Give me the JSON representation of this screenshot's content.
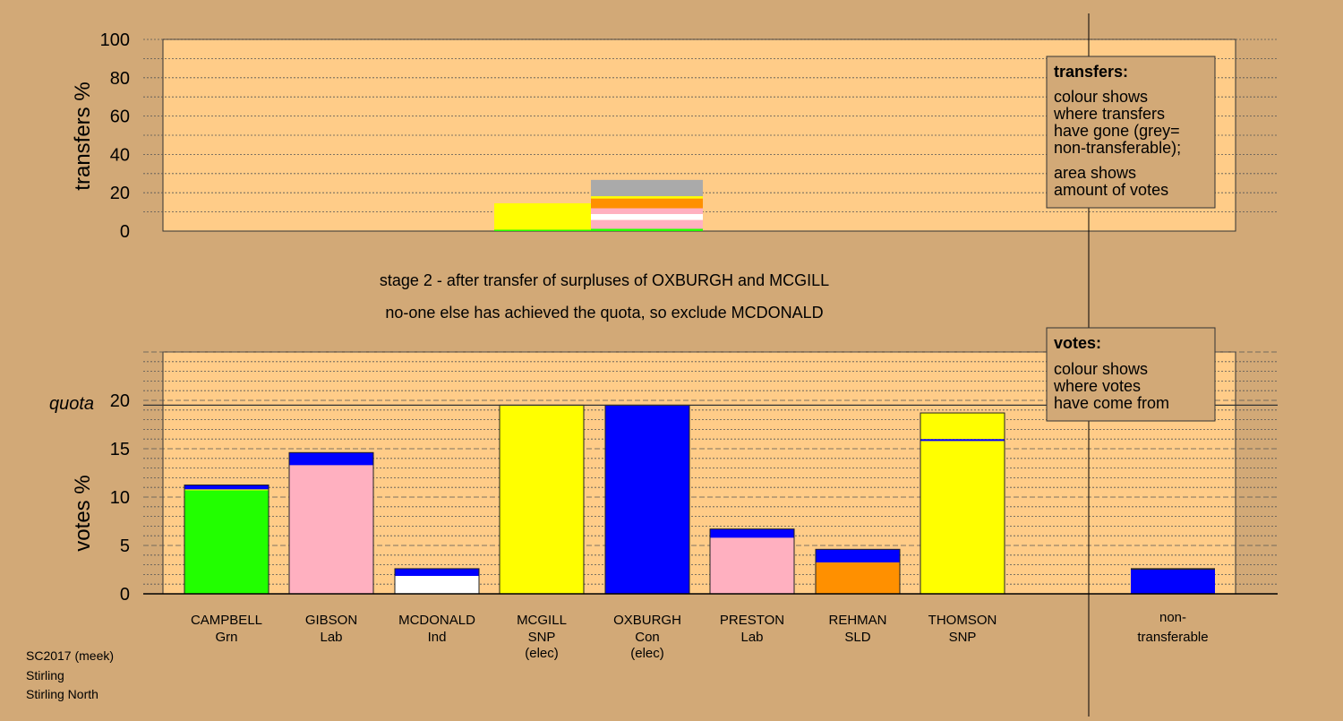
{
  "stage_line1": "stage 2 - after transfer of surpluses of OXBURGH and MCGILL",
  "stage_line2": "no-one else has achieved the quota, so exclude MCDONALD",
  "quota_label": "quota",
  "footer": {
    "line1": "SC2017 (meek)",
    "line2": "Stirling",
    "line3": "Stirling North"
  },
  "transfers_legend": {
    "title": "transfers:",
    "lines": [
      "colour shows",
      "where transfers",
      "have gone (grey=",
      "non-transferable);",
      "area shows",
      "amount of votes"
    ]
  },
  "votes_legend": {
    "title": "votes:",
    "lines": [
      "colour shows",
      "where votes",
      "have come from"
    ]
  },
  "colors": {
    "background": "#d2a977",
    "plot_area": "#ffcc88",
    "Grn": "#22ff00",
    "Lab": "#ffb0c0",
    "Ind": "#ffffff",
    "SNP": "#ffff00",
    "Con": "#0000ff",
    "SLD": "#ff9000",
    "nontransferable": "#aaaaaa"
  },
  "chart_data": [
    {
      "type": "bar",
      "title": "",
      "ylabel": "transfers %",
      "ylim": [
        0,
        100
      ],
      "yticks": [
        0,
        20,
        40,
        60,
        80,
        100
      ],
      "bars": [
        {
          "source": "MCGILL",
          "segments": [
            {
              "to": "CAMPBELL",
              "party": "Grn",
              "value": 0.7
            },
            {
              "to": "THOMSON",
              "party": "SNP",
              "value": 13.8
            }
          ]
        },
        {
          "source": "OXBURGH",
          "segments": [
            {
              "to": "CAMPBELL",
              "party": "Grn",
              "value": 1.2
            },
            {
              "to": "GIBSON",
              "party": "Lab",
              "value": 4.6
            },
            {
              "to": "MCDONALD",
              "party": "Ind",
              "value": 3.1
            },
            {
              "to": "PRESTON",
              "party": "Lab",
              "value": 3.0
            },
            {
              "to": "REHMAN",
              "party": "SLD",
              "value": 5.1
            },
            {
              "to": "THOMSON",
              "party": "SNP",
              "value": 1.2
            },
            {
              "to": "non-transferable",
              "party": "nontransferable",
              "value": 8.5
            }
          ]
        }
      ]
    },
    {
      "type": "bar",
      "title": "",
      "ylabel": "votes %",
      "ylim": [
        0,
        25
      ],
      "yticks": [
        0,
        5,
        10,
        15,
        20
      ],
      "quota": 19.5,
      "candidates": [
        {
          "name": "CAMPBELL",
          "party": "Grn",
          "note": "",
          "segments": [
            {
              "from": "Grn",
              "value": 10.7
            },
            {
              "from": "SNP",
              "value": 0.1
            },
            {
              "from": "Con",
              "value": 0.45
            }
          ]
        },
        {
          "name": "GIBSON",
          "party": "Lab",
          "note": "",
          "segments": [
            {
              "from": "Lab",
              "value": 13.3
            },
            {
              "from": "Con",
              "value": 1.3
            }
          ]
        },
        {
          "name": "MCDONALD",
          "party": "Ind",
          "note": "",
          "segments": [
            {
              "from": "Ind",
              "value": 1.85
            },
            {
              "from": "Con",
              "value": 0.75
            }
          ]
        },
        {
          "name": "MCGILL",
          "party": "SNP",
          "note": "(elec)",
          "segments": [
            {
              "from": "SNP",
              "value": 19.5
            }
          ]
        },
        {
          "name": "OXBURGH",
          "party": "Con",
          "note": "(elec)",
          "segments": [
            {
              "from": "Con",
              "value": 19.5
            }
          ]
        },
        {
          "name": "PRESTON",
          "party": "Lab",
          "note": "",
          "segments": [
            {
              "from": "Lab",
              "value": 5.8
            },
            {
              "from": "Con",
              "value": 0.9
            }
          ]
        },
        {
          "name": "REHMAN",
          "party": "SLD",
          "note": "",
          "segments": [
            {
              "from": "SLD",
              "value": 3.25
            },
            {
              "from": "Con",
              "value": 1.35
            }
          ]
        },
        {
          "name": "THOMSON",
          "party": "SNP",
          "note": "",
          "segments": [
            {
              "from": "SNP",
              "value": 15.8
            },
            {
              "from": "Con",
              "value": 0.2
            },
            {
              "from": "SNP",
              "value": 2.7
            }
          ]
        }
      ],
      "nontransferable": {
        "line1": "non-",
        "line2": "transferable",
        "value": 2.65,
        "segments": [
          {
            "from": "Con",
            "value": 2.5
          },
          {
            "from": "other",
            "value": 0.15
          }
        ]
      }
    }
  ]
}
